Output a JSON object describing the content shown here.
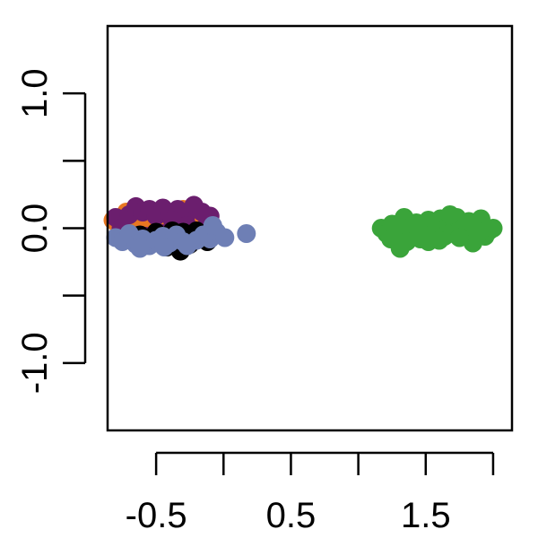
{
  "chart_data": {
    "type": "scatter",
    "title": "",
    "xlabel": "",
    "ylabel": "",
    "xlim": [
      -0.86,
      2.14
    ],
    "ylim": [
      -1.5,
      1.5
    ],
    "x_ticks": [
      -0.5,
      0,
      0.5,
      1,
      1.5,
      2
    ],
    "x_tick_labels": [
      {
        "value": -0.5,
        "label": "-0.5"
      },
      {
        "value": 0.5,
        "label": "0.5"
      },
      {
        "value": 1.5,
        "label": "1.5"
      }
    ],
    "y_ticks": [
      -1,
      -0.5,
      0,
      0.5,
      1
    ],
    "y_tick_labels": [
      {
        "value": -1,
        "label": "-1.0"
      },
      {
        "value": 0,
        "label": "0.0"
      },
      {
        "value": 1,
        "label": "1.0"
      }
    ],
    "grid": false,
    "legend": "none",
    "series": [
      {
        "name": "orange",
        "color": "#E87722",
        "points": [
          [
            -0.82,
            0.06
          ],
          [
            -0.78,
            0.02
          ],
          [
            -0.73,
            0.08
          ],
          [
            -0.68,
            0.1
          ],
          [
            -0.63,
            0.05
          ],
          [
            -0.58,
            0.1
          ],
          [
            -0.53,
            0.11
          ],
          [
            -0.48,
            0.07
          ],
          [
            -0.43,
            0.12
          ],
          [
            -0.38,
            0.08
          ],
          [
            -0.33,
            0.1
          ],
          [
            -0.28,
            0.11
          ],
          [
            -0.23,
            0.07
          ],
          [
            -0.2,
            0.09
          ],
          [
            -0.76,
            -0.01
          ],
          [
            -0.66,
            0.13
          ],
          [
            -0.56,
            0.02
          ],
          [
            -0.46,
            0.13
          ],
          [
            -0.36,
            0.03
          ],
          [
            -0.3,
            0.14
          ],
          [
            -0.72,
            0.12
          ],
          [
            -0.62,
            -0.02
          ],
          [
            -0.42,
            0.0
          ],
          [
            -0.35,
            -0.05
          ],
          [
            -0.52,
            0.04
          ]
        ]
      },
      {
        "name": "purple",
        "color": "#6B1E6E",
        "points": [
          [
            -0.8,
            0.08
          ],
          [
            -0.76,
            0.0
          ],
          [
            -0.7,
            0.1
          ],
          [
            -0.65,
            0.16
          ],
          [
            -0.6,
            0.12
          ],
          [
            -0.55,
            0.14
          ],
          [
            -0.5,
            0.09
          ],
          [
            -0.45,
            0.15
          ],
          [
            -0.4,
            0.11
          ],
          [
            -0.34,
            0.14
          ],
          [
            -0.28,
            0.09
          ],
          [
            -0.22,
            0.17
          ],
          [
            -0.16,
            0.12
          ],
          [
            -0.1,
            0.09
          ],
          [
            -0.38,
            0.06
          ],
          [
            -0.46,
            -0.04
          ],
          [
            -0.27,
            0.02
          ],
          [
            -0.12,
            0.03
          ],
          [
            -0.74,
            -0.03
          ],
          [
            -0.58,
            -0.06
          ]
        ]
      },
      {
        "name": "black",
        "color": "#000000",
        "points": [
          [
            -0.62,
            -0.05
          ],
          [
            -0.55,
            -0.07
          ],
          [
            -0.5,
            -0.03
          ],
          [
            -0.45,
            -0.1
          ],
          [
            -0.4,
            -0.09
          ],
          [
            -0.35,
            -0.12
          ],
          [
            -0.32,
            -0.17
          ],
          [
            -0.3,
            -0.03
          ],
          [
            -0.26,
            -0.09
          ],
          [
            -0.22,
            -0.06
          ],
          [
            -0.2,
            -0.02
          ],
          [
            -0.15,
            -0.07
          ],
          [
            -0.12,
            -0.1
          ],
          [
            -0.42,
            -0.14
          ],
          [
            -0.48,
            -0.11
          ],
          [
            -0.08,
            -0.04
          ],
          [
            -0.25,
            -0.12
          ],
          [
            -0.38,
            -0.02
          ]
        ]
      },
      {
        "name": "blue",
        "color": "#6E7FB5",
        "points": [
          [
            -0.8,
            -0.07
          ],
          [
            -0.75,
            -0.1
          ],
          [
            -0.7,
            -0.04
          ],
          [
            -0.65,
            -0.12
          ],
          [
            -0.6,
            -0.08
          ],
          [
            -0.55,
            -0.13
          ],
          [
            -0.5,
            -0.09
          ],
          [
            -0.45,
            -0.06
          ],
          [
            -0.4,
            -0.11
          ],
          [
            -0.35,
            -0.05
          ],
          [
            -0.3,
            -0.1
          ],
          [
            -0.2,
            -0.09
          ],
          [
            -0.15,
            -0.05
          ],
          [
            -0.1,
            -0.08
          ],
          [
            -0.05,
            -0.03
          ],
          [
            0.01,
            -0.07
          ],
          [
            0.17,
            -0.04
          ],
          [
            -0.62,
            -0.15
          ],
          [
            -0.44,
            -0.14
          ],
          [
            -0.27,
            -0.13
          ],
          [
            -0.08,
            0.02
          ]
        ]
      },
      {
        "name": "green",
        "color": "#3AA43A",
        "points": [
          [
            1.17,
            0.0
          ],
          [
            1.21,
            -0.04
          ],
          [
            1.25,
            0.03
          ],
          [
            1.28,
            -0.08
          ],
          [
            1.31,
            -0.15
          ],
          [
            1.34,
            0.08
          ],
          [
            1.37,
            0.0
          ],
          [
            1.4,
            -0.06
          ],
          [
            1.43,
            0.04
          ],
          [
            1.46,
            -0.08
          ],
          [
            1.49,
            0.02
          ],
          [
            1.52,
            0.06
          ],
          [
            1.55,
            -0.05
          ],
          [
            1.58,
            0.0
          ],
          [
            1.61,
            0.07
          ],
          [
            1.64,
            -0.06
          ],
          [
            1.67,
            0.03
          ],
          [
            1.7,
            -0.02
          ],
          [
            1.73,
            0.08
          ],
          [
            1.76,
            0.01
          ],
          [
            1.79,
            -0.05
          ],
          [
            1.82,
            0.05
          ],
          [
            1.85,
            -0.11
          ],
          [
            1.88,
            0.02
          ],
          [
            1.91,
            0.07
          ],
          [
            1.94,
            -0.06
          ],
          [
            1.97,
            -0.02
          ],
          [
            2.0,
            0.0
          ],
          [
            1.3,
            0.02
          ],
          [
            1.45,
            -0.02
          ],
          [
            1.6,
            -0.09
          ],
          [
            1.75,
            -0.07
          ],
          [
            1.9,
            -0.03
          ],
          [
            1.36,
            -0.1
          ],
          [
            1.68,
            0.1
          ],
          [
            1.24,
            -0.08
          ],
          [
            1.52,
            -0.1
          ],
          [
            1.84,
            0.04
          ]
        ]
      }
    ]
  }
}
